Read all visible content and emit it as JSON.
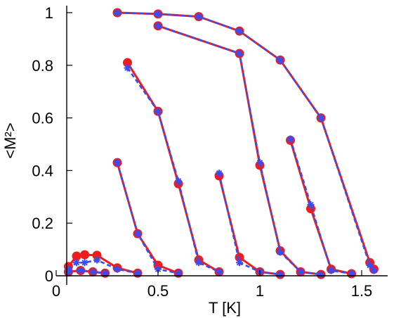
{
  "chart_data": {
    "type": "line",
    "xlabel": "T [K]",
    "ylabel": "<M²>",
    "xlim": [
      0,
      1.6
    ],
    "ylim": [
      0,
      1.02
    ],
    "xticks": [
      0,
      0.5,
      1,
      1.5
    ],
    "xtick_labels": [
      "0",
      "0.5",
      "1",
      "1.5"
    ],
    "yticks": [
      0,
      0.2,
      0.4,
      0.6,
      0.8,
      1
    ],
    "ytick_labels": [
      "0",
      "0.2",
      "0.4",
      "0.6",
      "0.8",
      "1"
    ],
    "grid": false,
    "colors": {
      "solid": "#ee1c1c",
      "dashed": "#3a4df0"
    },
    "series": [
      {
        "style": "solid-red-circles",
        "x": [
          0.06,
          0.1,
          0.14,
          0.2,
          0.3,
          0.4
        ],
        "y": [
          0.035,
          0.075,
          0.08,
          0.078,
          0.03,
          0.01
        ]
      },
      {
        "style": "dashed-blue-stars",
        "x": [
          0.06,
          0.1,
          0.14,
          0.2,
          0.3,
          0.4
        ],
        "y": [
          0.025,
          0.05,
          0.05,
          0.06,
          0.025,
          0.01
        ]
      },
      {
        "style": "solid-red-circles",
        "x": [
          0.06,
          0.12,
          0.18,
          0.24
        ],
        "y": [
          0.015,
          0.02,
          0.015,
          0.01
        ]
      },
      {
        "style": "dashed-blue-stars",
        "x": [
          0.06,
          0.12,
          0.18,
          0.24
        ],
        "y": [
          0.015,
          0.02,
          0.015,
          0.01
        ]
      },
      {
        "style": "solid-red-circles",
        "x": [
          0.3,
          0.4,
          0.5,
          0.6
        ],
        "y": [
          0.43,
          0.16,
          0.04,
          0.01
        ]
      },
      {
        "style": "dashed-blue-stars",
        "x": [
          0.3,
          0.4,
          0.5,
          0.6
        ],
        "y": [
          0.43,
          0.16,
          0.025,
          0.01
        ]
      },
      {
        "style": "solid-red-circles",
        "x": [
          0.35,
          0.5,
          0.6,
          0.7,
          0.8
        ],
        "y": [
          0.81,
          0.625,
          0.35,
          0.06,
          0.015
        ]
      },
      {
        "style": "dashed-blue-stars",
        "x": [
          0.35,
          0.5,
          0.6,
          0.7,
          0.8
        ],
        "y": [
          0.79,
          0.625,
          0.36,
          0.05,
          0.015
        ]
      },
      {
        "style": "solid-red-circles",
        "x": [
          0.8,
          0.9,
          1.0,
          1.1
        ],
        "y": [
          0.38,
          0.07,
          0.015,
          0.005
        ]
      },
      {
        "style": "dashed-blue-stars",
        "x": [
          0.8,
          0.9,
          1.0,
          1.1
        ],
        "y": [
          0.39,
          0.05,
          0.015,
          0.005
        ]
      },
      {
        "style": "solid-red-circles",
        "x": [
          0.5,
          0.9,
          1.0,
          1.1,
          1.2,
          1.3
        ],
        "y": [
          0.95,
          0.845,
          0.42,
          0.095,
          0.015,
          0.005
        ]
      },
      {
        "style": "dashed-blue-stars",
        "x": [
          0.5,
          0.9,
          1.0,
          1.1,
          1.2,
          1.3
        ],
        "y": [
          0.95,
          0.845,
          0.43,
          0.09,
          0.015,
          0.005
        ]
      },
      {
        "style": "solid-red-circles",
        "x": [
          1.15,
          1.25,
          1.35,
          1.45
        ],
        "y": [
          0.515,
          0.255,
          0.025,
          0.008
        ]
      },
      {
        "style": "dashed-blue-stars",
        "x": [
          1.15,
          1.25,
          1.35,
          1.45
        ],
        "y": [
          0.52,
          0.27,
          0.02,
          0.008
        ]
      },
      {
        "style": "solid-red-circles",
        "x": [
          0.3,
          0.5,
          0.7,
          0.9,
          1.1,
          1.3,
          1.54,
          1.56
        ],
        "y": [
          1.0,
          0.995,
          0.985,
          0.93,
          0.82,
          0.6,
          0.05,
          0.025
        ]
      },
      {
        "style": "dashed-blue-stars",
        "x": [
          0.3,
          0.5,
          0.7,
          0.9,
          1.1,
          1.3,
          1.54,
          1.56
        ],
        "y": [
          1.0,
          0.995,
          0.985,
          0.93,
          0.82,
          0.6,
          0.04,
          0.02
        ]
      }
    ]
  }
}
